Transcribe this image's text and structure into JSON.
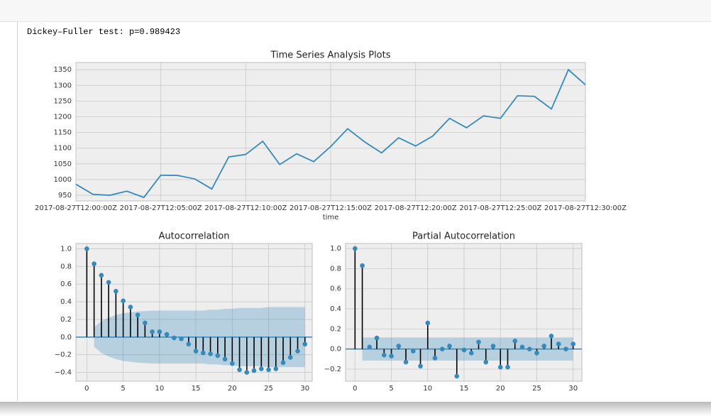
{
  "output_text": "Dickey–Fuller test: p=0.989423",
  "chart_data": [
    {
      "type": "line",
      "title": "Time Series Analysis Plots",
      "x_label": "time",
      "x": [
        "2017-08-27T12:00:00Z",
        "2017-08-27T12:01:00Z",
        "2017-08-27T12:02:00Z",
        "2017-08-27T12:03:00Z",
        "2017-08-27T12:04:00Z",
        "2017-08-27T12:05:00Z",
        "2017-08-27T12:06:00Z",
        "2017-08-27T12:07:00Z",
        "2017-08-27T12:08:00Z",
        "2017-08-27T12:09:00Z",
        "2017-08-27T12:10:00Z",
        "2017-08-27T12:11:00Z",
        "2017-08-27T12:12:00Z",
        "2017-08-27T12:13:00Z",
        "2017-08-27T12:14:00Z",
        "2017-08-27T12:15:00Z",
        "2017-08-27T12:16:00Z",
        "2017-08-27T12:17:00Z",
        "2017-08-27T12:18:00Z",
        "2017-08-27T12:19:00Z",
        "2017-08-27T12:20:00Z",
        "2017-08-27T12:21:00Z",
        "2017-08-27T12:22:00Z",
        "2017-08-27T12:23:00Z",
        "2017-08-27T12:24:00Z",
        "2017-08-27T12:25:00Z",
        "2017-08-27T12:26:00Z",
        "2017-08-27T12:27:00Z",
        "2017-08-27T12:28:00Z",
        "2017-08-27T12:29:00Z",
        "2017-08-27T12:30:00Z"
      ],
      "values": [
        985,
        953,
        950,
        963,
        943,
        1014,
        1013,
        1002,
        970,
        1072,
        1080,
        1122,
        1048,
        1082,
        1057,
        1105,
        1162,
        1120,
        1085,
        1133,
        1107,
        1138,
        1195,
        1165,
        1203,
        1195,
        1267,
        1265,
        1225,
        1350,
        1302
      ],
      "color": "#348abd",
      "xlim": [
        "2017-08-27T12:00:00Z",
        "2017-08-27T12:30:00Z"
      ],
      "xticks": [
        "2017-08-27T12:00:00Z",
        "2017-08-27T12:05:00Z",
        "2017-08-27T12:10:00Z",
        "2017-08-27T12:15:00Z",
        "2017-08-27T12:20:00Z",
        "2017-08-27T12:25:00Z",
        "2017-08-27T12:30:00Z"
      ],
      "ylim": [
        932,
        1373
      ],
      "yticks": [
        950,
        1000,
        1050,
        1100,
        1150,
        1200,
        1250,
        1300,
        1350
      ],
      "grid": true
    },
    {
      "type": "stem",
      "title": "Autocorrelation",
      "x": [
        0,
        1,
        2,
        3,
        4,
        5,
        6,
        7,
        8,
        9,
        10,
        11,
        12,
        13,
        14,
        15,
        16,
        17,
        18,
        19,
        20,
        21,
        22,
        23,
        24,
        25,
        26,
        27,
        28,
        29,
        30
      ],
      "values": [
        1.0,
        0.83,
        0.7,
        0.62,
        0.52,
        0.41,
        0.34,
        0.25,
        0.16,
        0.06,
        0.06,
        0.03,
        -0.01,
        -0.02,
        -0.08,
        -0.16,
        -0.18,
        -0.19,
        -0.21,
        -0.25,
        -0.3,
        -0.37,
        -0.4,
        -0.38,
        -0.36,
        -0.37,
        -0.36,
        -0.29,
        -0.23,
        -0.16,
        -0.08
      ],
      "band_upper": [
        null,
        0.11,
        0.18,
        0.22,
        0.25,
        0.27,
        0.28,
        0.29,
        0.295,
        0.3,
        0.3,
        0.3,
        0.3,
        0.3,
        0.3,
        0.3,
        0.3,
        0.31,
        0.31,
        0.32,
        0.32,
        0.33,
        0.33,
        0.33,
        0.33,
        0.34,
        0.34,
        0.34,
        0.34,
        0.34,
        0.34
      ],
      "band_lower": [
        null,
        -0.11,
        -0.18,
        -0.22,
        -0.25,
        -0.27,
        -0.28,
        -0.29,
        -0.295,
        -0.3,
        -0.3,
        -0.3,
        -0.3,
        -0.3,
        -0.3,
        -0.3,
        -0.3,
        -0.31,
        -0.31,
        -0.32,
        -0.32,
        -0.33,
        -0.33,
        -0.33,
        -0.33,
        -0.34,
        -0.34,
        -0.34,
        -0.34,
        -0.34,
        -0.34
      ],
      "color": "#348abd",
      "xlim": [
        -1.5,
        31
      ],
      "xticks": [
        0,
        5,
        10,
        15,
        20,
        25,
        30
      ],
      "ylim": [
        -0.5,
        1.06
      ],
      "yticks": [
        {
          "value": -0.4,
          "label": "−0.4"
        },
        {
          "value": -0.2,
          "label": "−0.2"
        },
        {
          "value": 0,
          "label": "0.0"
        },
        0.2,
        0.4,
        0.6,
        0.8,
        {
          "value": 1,
          "label": "1.0"
        }
      ],
      "grid": true
    },
    {
      "type": "stem",
      "title": "Partial Autocorrelation",
      "x": [
        0,
        1,
        2,
        3,
        4,
        5,
        6,
        7,
        8,
        9,
        10,
        11,
        12,
        13,
        14,
        15,
        16,
        17,
        18,
        19,
        20,
        21,
        22,
        23,
        24,
        25,
        26,
        27,
        28,
        29,
        30
      ],
      "values": [
        1.0,
        0.83,
        0.02,
        0.11,
        -0.06,
        -0.07,
        0.03,
        -0.13,
        -0.02,
        -0.17,
        0.26,
        -0.09,
        0.0,
        0.03,
        -0.27,
        -0.01,
        -0.04,
        0.07,
        -0.13,
        0.03,
        -0.18,
        -0.18,
        0.08,
        0.02,
        0.0,
        -0.04,
        0.03,
        0.13,
        0.05,
        0.0,
        0.05
      ],
      "band_upper": [
        null,
        0.115,
        0.115,
        0.115,
        0.115,
        0.115,
        0.115,
        0.115,
        0.115,
        0.115,
        0.115,
        0.115,
        0.115,
        0.115,
        0.115,
        0.115,
        0.115,
        0.115,
        0.115,
        0.115,
        0.115,
        0.115,
        0.115,
        0.115,
        0.115,
        0.115,
        0.115,
        0.115,
        0.115,
        0.115,
        0.115
      ],
      "band_lower": [
        null,
        -0.115,
        -0.115,
        -0.115,
        -0.115,
        -0.115,
        -0.115,
        -0.115,
        -0.115,
        -0.115,
        -0.115,
        -0.115,
        -0.115,
        -0.115,
        -0.115,
        -0.115,
        -0.115,
        -0.115,
        -0.115,
        -0.115,
        -0.115,
        -0.115,
        -0.115,
        -0.115,
        -0.115,
        -0.115,
        -0.115,
        -0.115,
        -0.115,
        -0.115,
        -0.115
      ],
      "color": "#348abd",
      "xlim": [
        -1.3,
        31.2
      ],
      "xticks": [
        0,
        5,
        10,
        15,
        20,
        25,
        30
      ],
      "ylim": [
        -0.32,
        1.05
      ],
      "yticks": [
        {
          "value": -0.2,
          "label": "−0.2"
        },
        {
          "value": 0,
          "label": "0.0"
        },
        0.2,
        0.4,
        0.6,
        0.8,
        {
          "value": 1,
          "label": "1.0"
        }
      ],
      "grid": true
    }
  ]
}
